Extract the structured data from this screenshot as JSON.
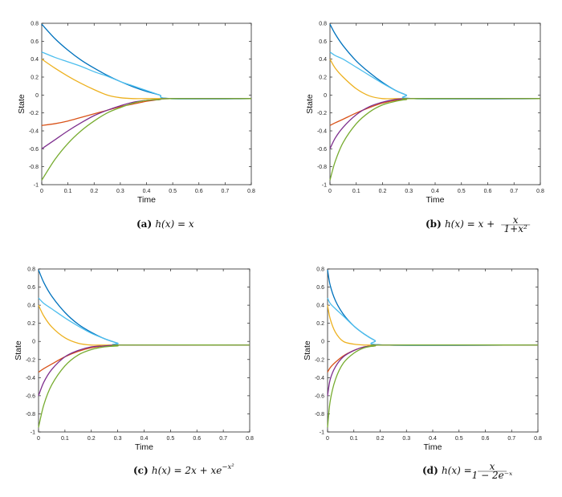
{
  "chart_data": [
    {
      "type": "line",
      "caption": "(a) h(x) = x",
      "caption_parts": {
        "tag": "(a)",
        "h": "h(x) = x",
        "frac_num": "",
        "frac_den": ""
      },
      "xlabel": "Time",
      "ylabel": "State",
      "xlim": [
        0,
        0.8
      ],
      "ylim": [
        -1,
        0.8
      ],
      "xticks": [
        "0",
        "0.1",
        "0.2",
        "0.3",
        "0.4",
        "0.5",
        "0.6",
        "0.7",
        "0.8"
      ],
      "yticks": [
        "-1",
        "-0.8",
        "-0.6",
        "-0.4",
        "-0.2",
        "0",
        "0.2",
        "0.4",
        "0.6",
        "0.8"
      ],
      "equilibrium": -0.04,
      "grid": false,
      "series": [
        {
          "color": "#0072BD",
          "x": [
            0,
            0.05,
            0.1,
            0.15,
            0.2,
            0.25,
            0.3,
            0.35,
            0.4,
            0.45,
            0.49,
            0.8
          ],
          "y": [
            0.79,
            0.63,
            0.5,
            0.39,
            0.3,
            0.22,
            0.15,
            0.09,
            0.04,
            0.0,
            -0.04,
            -0.04
          ]
        },
        {
          "color": "#4DBEEE",
          "x": [
            0,
            0.05,
            0.1,
            0.15,
            0.2,
            0.25,
            0.3,
            0.35,
            0.4,
            0.45,
            0.49,
            0.8
          ],
          "y": [
            0.48,
            0.42,
            0.37,
            0.32,
            0.26,
            0.21,
            0.15,
            0.1,
            0.05,
            0.0,
            -0.04,
            -0.04
          ]
        },
        {
          "color": "#EDB120",
          "x": [
            0,
            0.05,
            0.1,
            0.15,
            0.2,
            0.25,
            0.3,
            0.35,
            0.4,
            0.45,
            0.49,
            0.8
          ],
          "y": [
            0.4,
            0.3,
            0.21,
            0.13,
            0.06,
            0.0,
            -0.03,
            -0.04,
            -0.04,
            -0.04,
            -0.04,
            -0.04
          ]
        },
        {
          "color": "#D95319",
          "x": [
            0,
            0.05,
            0.1,
            0.15,
            0.2,
            0.25,
            0.3,
            0.35,
            0.4,
            0.45,
            0.49,
            0.8
          ],
          "y": [
            -0.34,
            -0.32,
            -0.29,
            -0.25,
            -0.21,
            -0.17,
            -0.13,
            -0.1,
            -0.07,
            -0.05,
            -0.04,
            -0.04
          ]
        },
        {
          "color": "#7E2F8E",
          "x": [
            0,
            0.05,
            0.1,
            0.15,
            0.2,
            0.25,
            0.3,
            0.35,
            0.4,
            0.45,
            0.49,
            0.8
          ],
          "y": [
            -0.6,
            -0.5,
            -0.4,
            -0.31,
            -0.23,
            -0.17,
            -0.12,
            -0.08,
            -0.06,
            -0.05,
            -0.04,
            -0.04
          ]
        },
        {
          "color": "#77AC30",
          "x": [
            0,
            0.05,
            0.1,
            0.15,
            0.2,
            0.25,
            0.3,
            0.35,
            0.4,
            0.45,
            0.49,
            0.8
          ],
          "y": [
            -0.95,
            -0.72,
            -0.54,
            -0.4,
            -0.29,
            -0.2,
            -0.14,
            -0.09,
            -0.06,
            -0.05,
            -0.04,
            -0.04
          ]
        }
      ]
    },
    {
      "type": "line",
      "caption": "(b) h(x) = x + x/(1+x^2)",
      "caption_parts": {
        "tag": "(b)",
        "h": "h(x) = x +",
        "frac_num": "x",
        "frac_den": "1+x²"
      },
      "xlabel": "Time",
      "ylabel": "State",
      "xlim": [
        0,
        0.8
      ],
      "ylim": [
        -1,
        0.8
      ],
      "xticks": [
        "0",
        "0.1",
        "0.2",
        "0.3",
        "0.4",
        "0.5",
        "0.6",
        "0.7",
        "0.8"
      ],
      "yticks": [
        "-1",
        "-0.8",
        "-0.6",
        "-0.4",
        "-0.2",
        "0",
        "0.2",
        "0.4",
        "0.6",
        "0.8"
      ],
      "equilibrium": -0.04,
      "grid": false,
      "series": [
        {
          "color": "#0072BD",
          "x": [
            0,
            0.02,
            0.05,
            0.1,
            0.15,
            0.2,
            0.25,
            0.29,
            0.32,
            0.8
          ],
          "y": [
            0.79,
            0.68,
            0.55,
            0.38,
            0.25,
            0.14,
            0.05,
            0.0,
            -0.04,
            -0.04
          ]
        },
        {
          "color": "#4DBEEE",
          "x": [
            0,
            0.02,
            0.05,
            0.1,
            0.15,
            0.2,
            0.25,
            0.29,
            0.32,
            0.8
          ],
          "y": [
            0.48,
            0.44,
            0.4,
            0.31,
            0.22,
            0.13,
            0.05,
            0.0,
            -0.04,
            -0.04
          ]
        },
        {
          "color": "#EDB120",
          "x": [
            0,
            0.02,
            0.05,
            0.1,
            0.15,
            0.2,
            0.25,
            0.29,
            0.32,
            0.8
          ],
          "y": [
            0.4,
            0.3,
            0.2,
            0.07,
            -0.01,
            -0.04,
            -0.04,
            -0.04,
            -0.04,
            -0.04
          ]
        },
        {
          "color": "#D95319",
          "x": [
            0,
            0.02,
            0.05,
            0.1,
            0.15,
            0.2,
            0.25,
            0.29,
            0.32,
            0.8
          ],
          "y": [
            -0.34,
            -0.31,
            -0.27,
            -0.2,
            -0.14,
            -0.09,
            -0.06,
            -0.05,
            -0.04,
            -0.04
          ]
        },
        {
          "color": "#7E2F8E",
          "x": [
            0,
            0.02,
            0.05,
            0.1,
            0.15,
            0.2,
            0.25,
            0.29,
            0.32,
            0.8
          ],
          "y": [
            -0.6,
            -0.48,
            -0.36,
            -0.22,
            -0.13,
            -0.08,
            -0.05,
            -0.04,
            -0.04,
            -0.04
          ]
        },
        {
          "color": "#77AC30",
          "x": [
            0,
            0.02,
            0.05,
            0.1,
            0.15,
            0.2,
            0.25,
            0.29,
            0.32,
            0.8
          ],
          "y": [
            -0.95,
            -0.74,
            -0.53,
            -0.32,
            -0.19,
            -0.11,
            -0.07,
            -0.05,
            -0.04,
            -0.04
          ]
        }
      ]
    },
    {
      "type": "line",
      "caption": "(c) h(x) = 2x + xe^(-x^2)",
      "caption_parts": {
        "tag": "(c)",
        "h": "h(x) = 2x + xe",
        "sup": "−x²",
        "frac_num": "",
        "frac_den": ""
      },
      "xlabel": "Time",
      "ylabel": "State",
      "xlim": [
        0,
        0.8
      ],
      "ylim": [
        -1,
        0.8
      ],
      "xticks": [
        "0",
        "0.1",
        "0.2",
        "0.3",
        "0.4",
        "0.5",
        "0.6",
        "0.7",
        "0.8"
      ],
      "yticks": [
        "-1",
        "-0.8",
        "-0.6",
        "-0.4",
        "-0.2",
        "0",
        "0.2",
        "0.4",
        "0.6",
        "0.8"
      ],
      "equilibrium": -0.04,
      "grid": false,
      "series": [
        {
          "color": "#0072BD",
          "x": [
            0,
            0.02,
            0.05,
            0.1,
            0.15,
            0.2,
            0.25,
            0.3,
            0.32,
            0.8
          ],
          "y": [
            0.79,
            0.65,
            0.5,
            0.32,
            0.19,
            0.1,
            0.03,
            -0.02,
            -0.04,
            -0.04
          ]
        },
        {
          "color": "#4DBEEE",
          "x": [
            0,
            0.02,
            0.05,
            0.1,
            0.15,
            0.2,
            0.25,
            0.3,
            0.32,
            0.8
          ],
          "y": [
            0.48,
            0.42,
            0.36,
            0.26,
            0.17,
            0.09,
            0.03,
            -0.02,
            -0.04,
            -0.04
          ]
        },
        {
          "color": "#EDB120",
          "x": [
            0,
            0.02,
            0.05,
            0.1,
            0.15,
            0.2,
            0.25,
            0.3,
            0.32,
            0.8
          ],
          "y": [
            0.4,
            0.28,
            0.16,
            0.04,
            -0.02,
            -0.04,
            -0.04,
            -0.04,
            -0.04,
            -0.04
          ]
        },
        {
          "color": "#D95319",
          "x": [
            0,
            0.02,
            0.05,
            0.1,
            0.15,
            0.2,
            0.25,
            0.3,
            0.32,
            0.8
          ],
          "y": [
            -0.34,
            -0.3,
            -0.25,
            -0.17,
            -0.11,
            -0.07,
            -0.05,
            -0.04,
            -0.04,
            -0.04
          ]
        },
        {
          "color": "#7E2F8E",
          "x": [
            0,
            0.02,
            0.05,
            0.1,
            0.15,
            0.2,
            0.25,
            0.3,
            0.32,
            0.8
          ],
          "y": [
            -0.6,
            -0.45,
            -0.31,
            -0.17,
            -0.1,
            -0.06,
            -0.05,
            -0.04,
            -0.04,
            -0.04
          ]
        },
        {
          "color": "#77AC30",
          "x": [
            0,
            0.02,
            0.05,
            0.1,
            0.15,
            0.2,
            0.25,
            0.3,
            0.32,
            0.8
          ],
          "y": [
            -0.95,
            -0.7,
            -0.48,
            -0.27,
            -0.15,
            -0.09,
            -0.06,
            -0.05,
            -0.04,
            -0.04
          ]
        }
      ]
    },
    {
      "type": "line",
      "caption": "(d) h(x) = x/(1-2e^(-x))",
      "caption_parts": {
        "tag": "(d)",
        "h": "h(x) =",
        "frac_num": "x",
        "frac_den": "1 − 2e⁻ˣ"
      },
      "xlabel": "Time",
      "ylabel": "State",
      "xlim": [
        0,
        0.8
      ],
      "ylim": [
        -1,
        0.8
      ],
      "xticks": [
        "0",
        "0.1",
        "0.2",
        "0.3",
        "0.4",
        "0.5",
        "0.6",
        "0.7",
        "0.8"
      ],
      "yticks": [
        "-1",
        "-0.8",
        "-0.6",
        "-0.4",
        "-0.2",
        "0",
        "0.2",
        "0.4",
        "0.6",
        "0.8"
      ],
      "equilibrium": -0.04,
      "grid": false,
      "series": [
        {
          "color": "#0072BD",
          "x": [
            0,
            0.01,
            0.03,
            0.06,
            0.1,
            0.14,
            0.18,
            0.22,
            0.8
          ],
          "y": [
            0.79,
            0.62,
            0.45,
            0.3,
            0.17,
            0.08,
            0.01,
            -0.04,
            -0.04
          ]
        },
        {
          "color": "#4DBEEE",
          "x": [
            0,
            0.01,
            0.03,
            0.06,
            0.1,
            0.14,
            0.18,
            0.22,
            0.8
          ],
          "y": [
            0.48,
            0.42,
            0.36,
            0.28,
            0.17,
            0.08,
            0.01,
            -0.04,
            -0.04
          ]
        },
        {
          "color": "#EDB120",
          "x": [
            0,
            0.01,
            0.03,
            0.06,
            0.1,
            0.14,
            0.18,
            0.22,
            0.8
          ],
          "y": [
            0.4,
            0.25,
            0.1,
            0.0,
            -0.03,
            -0.04,
            -0.04,
            -0.04,
            -0.04
          ]
        },
        {
          "color": "#D95319",
          "x": [
            0,
            0.01,
            0.03,
            0.06,
            0.1,
            0.14,
            0.18,
            0.22,
            0.8
          ],
          "y": [
            -0.34,
            -0.29,
            -0.23,
            -0.16,
            -0.1,
            -0.06,
            -0.05,
            -0.04,
            -0.04
          ]
        },
        {
          "color": "#7E2F8E",
          "x": [
            0,
            0.01,
            0.03,
            0.06,
            0.1,
            0.14,
            0.18,
            0.22,
            0.8
          ],
          "y": [
            -0.6,
            -0.42,
            -0.28,
            -0.17,
            -0.1,
            -0.06,
            -0.05,
            -0.04,
            -0.04
          ]
        },
        {
          "color": "#77AC30",
          "x": [
            0,
            0.01,
            0.03,
            0.06,
            0.1,
            0.14,
            0.18,
            0.22,
            0.8
          ],
          "y": [
            -0.95,
            -0.66,
            -0.42,
            -0.24,
            -0.13,
            -0.07,
            -0.05,
            -0.04,
            -0.04
          ]
        }
      ]
    }
  ]
}
